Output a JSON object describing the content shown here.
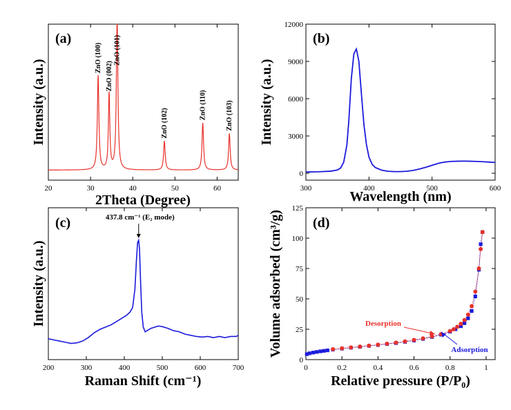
{
  "chart_data": [
    {
      "panel": "(a)",
      "type": "line",
      "xlabel": "2Theta (Degree)",
      "ylabel": "Intensity (a.u.)",
      "xlim": [
        20,
        65
      ],
      "xticks": [
        20,
        30,
        40,
        50,
        60
      ],
      "color": "#e8312a",
      "baseline": 0.03,
      "peaks": [
        {
          "x": 31.8,
          "h": 0.62,
          "w": 0.22,
          "label": "ZnO (100)"
        },
        {
          "x": 34.4,
          "h": 0.5,
          "w": 0.2,
          "label": "ZnO (002)"
        },
        {
          "x": 36.3,
          "h": 1.0,
          "w": 0.22,
          "label": "ZnO (101)"
        },
        {
          "x": 47.5,
          "h": 0.19,
          "w": 0.22,
          "label": "ZnO (102)"
        },
        {
          "x": 56.6,
          "h": 0.31,
          "w": 0.22,
          "label": "ZnO (110)"
        },
        {
          "x": 62.9,
          "h": 0.24,
          "w": 0.22,
          "label": "ZnO (103)"
        }
      ]
    },
    {
      "panel": "(b)",
      "type": "line",
      "xlabel": "Wavelength (nm)",
      "ylabel": "Intensity (a.u.)",
      "xlim": [
        300,
        600
      ],
      "ylim": [
        0,
        12000
      ],
      "xticks": [
        300,
        400,
        500,
        600
      ],
      "yticks": [
        0,
        3000,
        6000,
        9000,
        12000
      ],
      "color": "#1a1adc",
      "x": [
        300,
        320,
        340,
        350,
        355,
        360,
        365,
        368,
        372,
        376,
        380,
        384,
        388,
        392,
        396,
        400,
        405,
        410,
        420,
        430,
        440,
        450,
        460,
        470,
        480,
        490,
        500,
        510,
        520,
        530,
        540,
        550,
        560,
        570,
        580,
        590,
        600
      ],
      "y": [
        100,
        120,
        170,
        260,
        420,
        900,
        2300,
        4200,
        7600,
        9600,
        10000,
        9000,
        6400,
        3900,
        2300,
        1300,
        720,
        460,
        250,
        160,
        130,
        130,
        160,
        230,
        340,
        480,
        640,
        800,
        900,
        950,
        970,
        980,
        970,
        950,
        930,
        900,
        870
      ]
    },
    {
      "panel": "(c)",
      "type": "line",
      "xlabel": "Raman Shift (cm⁻¹)",
      "ylabel": "Intensity (a.u.)",
      "xlim": [
        200,
        700
      ],
      "ylim": [
        0,
        1
      ],
      "xticks": [
        200,
        300,
        400,
        500,
        600,
        700
      ],
      "color": "#1a1adc",
      "annotation": {
        "x": 437.8,
        "y": 0.97,
        "text": "437.8 cm⁻¹ (E₂ mode)"
      },
      "x": [
        200,
        215,
        230,
        245,
        260,
        275,
        290,
        305,
        320,
        335,
        350,
        365,
        380,
        395,
        405,
        415,
        422,
        428,
        432,
        435,
        437.8,
        440,
        443,
        446,
        450,
        455,
        460,
        470,
        480,
        490,
        500,
        515,
        530,
        545,
        560,
        575,
        590,
        605,
        620,
        635,
        650,
        665,
        680,
        695,
        700
      ],
      "y": [
        0.12,
        0.11,
        0.1,
        0.09,
        0.08,
        0.085,
        0.1,
        0.13,
        0.17,
        0.2,
        0.22,
        0.24,
        0.27,
        0.3,
        0.32,
        0.35,
        0.39,
        0.55,
        0.8,
        0.95,
        0.97,
        0.9,
        0.6,
        0.35,
        0.22,
        0.18,
        0.19,
        0.21,
        0.22,
        0.23,
        0.225,
        0.21,
        0.19,
        0.18,
        0.16,
        0.15,
        0.14,
        0.135,
        0.14,
        0.13,
        0.14,
        0.13,
        0.14,
        0.14,
        0.15
      ]
    },
    {
      "panel": "(d)",
      "type": "scatter",
      "xlabel": "Relative pressure (P/P₀)",
      "ylabel": "Volume adsorbed (cm³/g)",
      "xlim": [
        0.0,
        1.05
      ],
      "ylim": [
        0,
        125
      ],
      "xticks": [
        0.0,
        0.2,
        0.4,
        0.6,
        0.8,
        1.0
      ],
      "yticks": [
        0,
        25,
        50,
        75,
        100,
        125
      ],
      "series": [
        {
          "name": "Adsorption",
          "color": "#1a1adc",
          "marker": "square",
          "x": [
            0.005,
            0.02,
            0.04,
            0.06,
            0.08,
            0.1,
            0.12,
            0.15,
            0.2,
            0.25,
            0.3,
            0.35,
            0.4,
            0.45,
            0.5,
            0.55,
            0.6,
            0.65,
            0.7,
            0.75,
            0.8,
            0.83,
            0.86,
            0.88,
            0.9,
            0.92,
            0.94,
            0.96,
            0.97,
            0.98
          ],
          "y": [
            4.5,
            5.2,
            5.8,
            6.3,
            6.8,
            7.2,
            7.6,
            8.2,
            9.0,
            9.8,
            10.5,
            11.3,
            12.0,
            12.8,
            13.6,
            14.6,
            15.7,
            17.0,
            18.6,
            20.5,
            23.0,
            25.0,
            27.5,
            30.0,
            34.0,
            40.0,
            52.0,
            74.0,
            95.0,
            105.0
          ]
        },
        {
          "name": "Desorption",
          "color": "#e8312a",
          "marker": "circle",
          "x": [
            0.98,
            0.97,
            0.96,
            0.94,
            0.92,
            0.9,
            0.88,
            0.86,
            0.84,
            0.82,
            0.8,
            0.75,
            0.7,
            0.65,
            0.6,
            0.55,
            0.5,
            0.45,
            0.4,
            0.35,
            0.3,
            0.25,
            0.2,
            0.15
          ],
          "y": [
            105.0,
            91.0,
            75.0,
            56.0,
            44.0,
            37.0,
            32.5,
            29.5,
            27.0,
            25.0,
            23.5,
            21.0,
            19.0,
            17.5,
            16.2,
            15.0,
            14.0,
            13.1,
            12.3,
            11.5,
            10.7,
            10.0,
            9.3,
            8.5
          ]
        }
      ],
      "labels": {
        "desorption": "Desorption",
        "adsorption": "Adsorption"
      }
    }
  ]
}
